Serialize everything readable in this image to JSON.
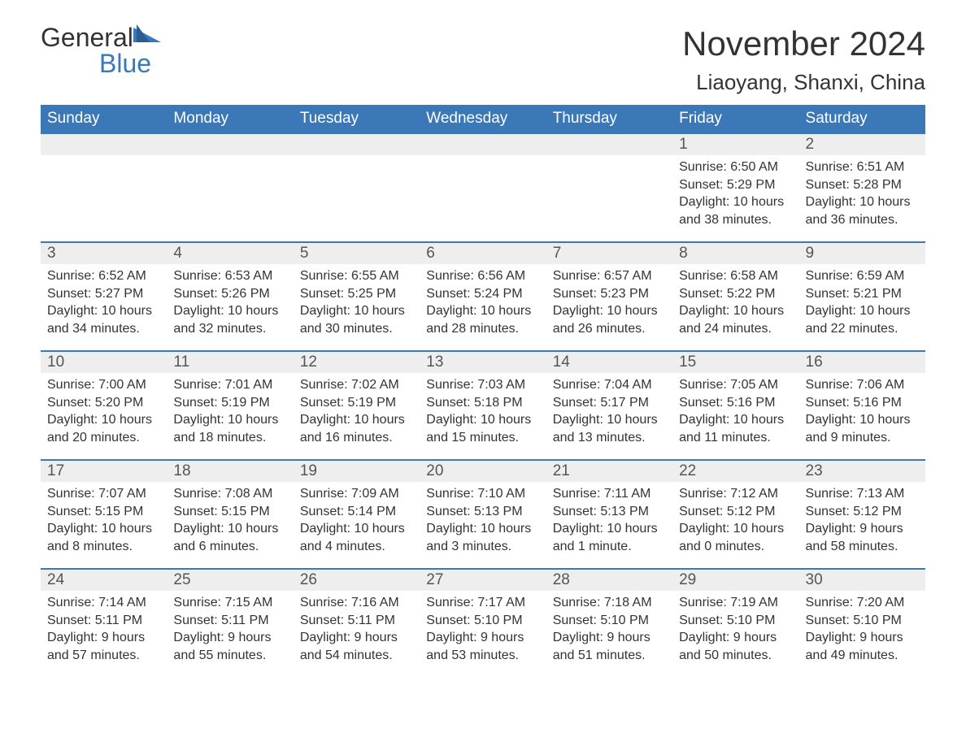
{
  "logo": {
    "text_general": "General",
    "text_blue": "Blue"
  },
  "title": {
    "month": "November 2024",
    "location": "Liaoyang, Shanxi, China"
  },
  "styling": {
    "header_bg": "#3b78b8",
    "header_text": "#ffffff",
    "daynum_bg": "#eeeeee",
    "daynum_border_top": "#3b78b8",
    "body_bg": "#ffffff",
    "text_color": "#333333",
    "title_fontsize": 42,
    "location_fontsize": 26,
    "header_fontsize": 19,
    "daynum_fontsize": 19,
    "content_fontsize": 16
  },
  "days_of_week": [
    "Sunday",
    "Monday",
    "Tuesday",
    "Wednesday",
    "Thursday",
    "Friday",
    "Saturday"
  ],
  "weeks": [
    [
      null,
      null,
      null,
      null,
      null,
      {
        "num": "1",
        "sunrise": "Sunrise: 6:50 AM",
        "sunset": "Sunset: 5:29 PM",
        "daylight": "Daylight: 10 hours and 38 minutes."
      },
      {
        "num": "2",
        "sunrise": "Sunrise: 6:51 AM",
        "sunset": "Sunset: 5:28 PM",
        "daylight": "Daylight: 10 hours and 36 minutes."
      }
    ],
    [
      {
        "num": "3",
        "sunrise": "Sunrise: 6:52 AM",
        "sunset": "Sunset: 5:27 PM",
        "daylight": "Daylight: 10 hours and 34 minutes."
      },
      {
        "num": "4",
        "sunrise": "Sunrise: 6:53 AM",
        "sunset": "Sunset: 5:26 PM",
        "daylight": "Daylight: 10 hours and 32 minutes."
      },
      {
        "num": "5",
        "sunrise": "Sunrise: 6:55 AM",
        "sunset": "Sunset: 5:25 PM",
        "daylight": "Daylight: 10 hours and 30 minutes."
      },
      {
        "num": "6",
        "sunrise": "Sunrise: 6:56 AM",
        "sunset": "Sunset: 5:24 PM",
        "daylight": "Daylight: 10 hours and 28 minutes."
      },
      {
        "num": "7",
        "sunrise": "Sunrise: 6:57 AM",
        "sunset": "Sunset: 5:23 PM",
        "daylight": "Daylight: 10 hours and 26 minutes."
      },
      {
        "num": "8",
        "sunrise": "Sunrise: 6:58 AM",
        "sunset": "Sunset: 5:22 PM",
        "daylight": "Daylight: 10 hours and 24 minutes."
      },
      {
        "num": "9",
        "sunrise": "Sunrise: 6:59 AM",
        "sunset": "Sunset: 5:21 PM",
        "daylight": "Daylight: 10 hours and 22 minutes."
      }
    ],
    [
      {
        "num": "10",
        "sunrise": "Sunrise: 7:00 AM",
        "sunset": "Sunset: 5:20 PM",
        "daylight": "Daylight: 10 hours and 20 minutes."
      },
      {
        "num": "11",
        "sunrise": "Sunrise: 7:01 AM",
        "sunset": "Sunset: 5:19 PM",
        "daylight": "Daylight: 10 hours and 18 minutes."
      },
      {
        "num": "12",
        "sunrise": "Sunrise: 7:02 AM",
        "sunset": "Sunset: 5:19 PM",
        "daylight": "Daylight: 10 hours and 16 minutes."
      },
      {
        "num": "13",
        "sunrise": "Sunrise: 7:03 AM",
        "sunset": "Sunset: 5:18 PM",
        "daylight": "Daylight: 10 hours and 15 minutes."
      },
      {
        "num": "14",
        "sunrise": "Sunrise: 7:04 AM",
        "sunset": "Sunset: 5:17 PM",
        "daylight": "Daylight: 10 hours and 13 minutes."
      },
      {
        "num": "15",
        "sunrise": "Sunrise: 7:05 AM",
        "sunset": "Sunset: 5:16 PM",
        "daylight": "Daylight: 10 hours and 11 minutes."
      },
      {
        "num": "16",
        "sunrise": "Sunrise: 7:06 AM",
        "sunset": "Sunset: 5:16 PM",
        "daylight": "Daylight: 10 hours and 9 minutes."
      }
    ],
    [
      {
        "num": "17",
        "sunrise": "Sunrise: 7:07 AM",
        "sunset": "Sunset: 5:15 PM",
        "daylight": "Daylight: 10 hours and 8 minutes."
      },
      {
        "num": "18",
        "sunrise": "Sunrise: 7:08 AM",
        "sunset": "Sunset: 5:15 PM",
        "daylight": "Daylight: 10 hours and 6 minutes."
      },
      {
        "num": "19",
        "sunrise": "Sunrise: 7:09 AM",
        "sunset": "Sunset: 5:14 PM",
        "daylight": "Daylight: 10 hours and 4 minutes."
      },
      {
        "num": "20",
        "sunrise": "Sunrise: 7:10 AM",
        "sunset": "Sunset: 5:13 PM",
        "daylight": "Daylight: 10 hours and 3 minutes."
      },
      {
        "num": "21",
        "sunrise": "Sunrise: 7:11 AM",
        "sunset": "Sunset: 5:13 PM",
        "daylight": "Daylight: 10 hours and 1 minute."
      },
      {
        "num": "22",
        "sunrise": "Sunrise: 7:12 AM",
        "sunset": "Sunset: 5:12 PM",
        "daylight": "Daylight: 10 hours and 0 minutes."
      },
      {
        "num": "23",
        "sunrise": "Sunrise: 7:13 AM",
        "sunset": "Sunset: 5:12 PM",
        "daylight": "Daylight: 9 hours and 58 minutes."
      }
    ],
    [
      {
        "num": "24",
        "sunrise": "Sunrise: 7:14 AM",
        "sunset": "Sunset: 5:11 PM",
        "daylight": "Daylight: 9 hours and 57 minutes."
      },
      {
        "num": "25",
        "sunrise": "Sunrise: 7:15 AM",
        "sunset": "Sunset: 5:11 PM",
        "daylight": "Daylight: 9 hours and 55 minutes."
      },
      {
        "num": "26",
        "sunrise": "Sunrise: 7:16 AM",
        "sunset": "Sunset: 5:11 PM",
        "daylight": "Daylight: 9 hours and 54 minutes."
      },
      {
        "num": "27",
        "sunrise": "Sunrise: 7:17 AM",
        "sunset": "Sunset: 5:10 PM",
        "daylight": "Daylight: 9 hours and 53 minutes."
      },
      {
        "num": "28",
        "sunrise": "Sunrise: 7:18 AM",
        "sunset": "Sunset: 5:10 PM",
        "daylight": "Daylight: 9 hours and 51 minutes."
      },
      {
        "num": "29",
        "sunrise": "Sunrise: 7:19 AM",
        "sunset": "Sunset: 5:10 PM",
        "daylight": "Daylight: 9 hours and 50 minutes."
      },
      {
        "num": "30",
        "sunrise": "Sunrise: 7:20 AM",
        "sunset": "Sunset: 5:10 PM",
        "daylight": "Daylight: 9 hours and 49 minutes."
      }
    ]
  ]
}
